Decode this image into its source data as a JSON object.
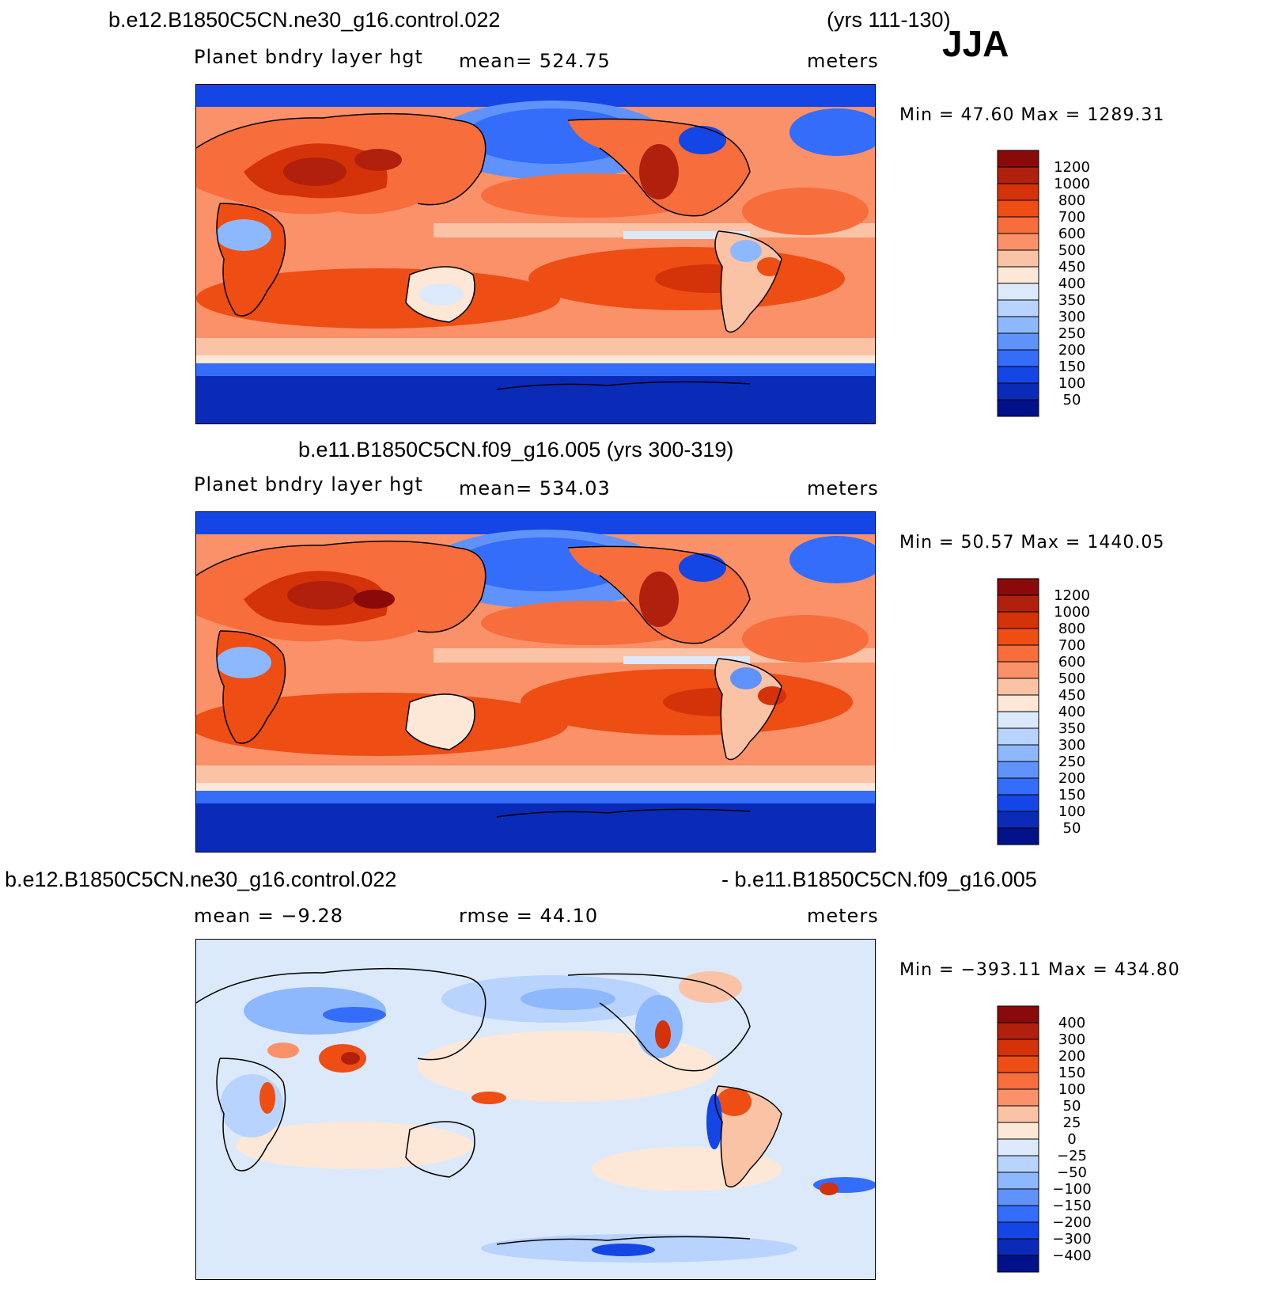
{
  "chart_data": [
    {
      "type": "heatmap",
      "title": "b.e12.B1850C5CN.ne30_g16.control.022",
      "title_right": "(yrs 111-130)",
      "season": "JJA",
      "variable": "Planet bndry layer hgt",
      "stat_left": "mean=  524.75",
      "units": "meters",
      "minmax": "Min =   47.60 Max =  1289.31",
      "levels": [
        "1200",
        "1000",
        "800",
        "700",
        "600",
        "500",
        "450",
        "400",
        "350",
        "300",
        "250",
        "200",
        "150",
        "100",
        "50"
      ],
      "colors": [
        "#8a0a0a",
        "#b0200c",
        "#d43208",
        "#ee4d13",
        "#f76d3b",
        "#fa9169",
        "#fbc3a6",
        "#fde7d7",
        "#dbe9fb",
        "#b8d3fd",
        "#8eb8fd",
        "#5f93fb",
        "#346dfa",
        "#1446e5",
        "#0a2bb8",
        "#00118a"
      ]
    },
    {
      "type": "heatmap",
      "title": "b.e11.B1850C5CN.f09_g16.005 (yrs 300-319)",
      "variable": "Planet bndry layer hgt",
      "stat_left": "mean=  534.03",
      "units": "meters",
      "minmax": "Min =   50.57 Max =  1440.05",
      "levels": [
        "1200",
        "1000",
        "800",
        "700",
        "600",
        "500",
        "450",
        "400",
        "350",
        "300",
        "250",
        "200",
        "150",
        "100",
        "50"
      ],
      "colors": [
        "#8a0a0a",
        "#b0200c",
        "#d43208",
        "#ee4d13",
        "#f76d3b",
        "#fa9169",
        "#fbc3a6",
        "#fde7d7",
        "#dbe9fb",
        "#b8d3fd",
        "#8eb8fd",
        "#5f93fb",
        "#346dfa",
        "#1446e5",
        "#0a2bb8",
        "#00118a"
      ]
    },
    {
      "type": "heatmap",
      "title": "b.e12.B1850C5CN.ne30_g16.control.022",
      "title_right": "- b.e11.B1850C5CN.f09_g16.005",
      "stat_left": "mean =   −9.28",
      "stat_mid": "rmse =   44.10",
      "units": "meters",
      "minmax": "Min = −393.11  Max =  434.80",
      "levels": [
        "400",
        "300",
        "200",
        "150",
        "100",
        "50",
        "25",
        "0",
        "−25",
        "−50",
        "−100",
        "−150",
        "−200",
        "−300",
        "−400"
      ],
      "colors": [
        "#8a0a0a",
        "#b0200c",
        "#d43208",
        "#ee4d13",
        "#f76d3b",
        "#fa9169",
        "#fbc3a6",
        "#fde7d7",
        "#dbe9fb",
        "#b8d3fd",
        "#8eb8fd",
        "#5f93fb",
        "#346dfa",
        "#1446e5",
        "#0a2bb8",
        "#00118a"
      ]
    }
  ]
}
